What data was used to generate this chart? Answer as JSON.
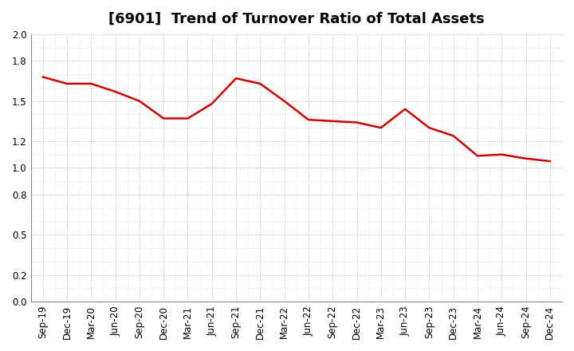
{
  "title": "[6901]  Trend of Turnover Ratio of Total Assets",
  "x_labels": [
    "Sep-19",
    "Dec-19",
    "Mar-20",
    "Jun-20",
    "Sep-20",
    "Dec-20",
    "Mar-21",
    "Jun-21",
    "Sep-21",
    "Dec-21",
    "Mar-22",
    "Jun-22",
    "Sep-22",
    "Dec-22",
    "Mar-23",
    "Jun-23",
    "Sep-23",
    "Dec-23",
    "Mar-24",
    "Jun-24",
    "Sep-24",
    "Dec-24"
  ],
  "values": [
    1.68,
    1.63,
    1.63,
    1.57,
    1.5,
    1.37,
    1.37,
    1.48,
    1.67,
    1.63,
    1.5,
    1.36,
    1.35,
    1.34,
    1.3,
    1.44,
    1.3,
    1.24,
    1.09,
    1.1,
    1.07,
    1.05
  ],
  "line_color": "#cc0000",
  "line_width": 1.8,
  "ylim": [
    0.0,
    2.0
  ],
  "yticks": [
    0.0,
    0.2,
    0.5,
    0.8,
    1.0,
    1.2,
    1.5,
    1.8,
    2.0
  ],
  "bg_color": "#ffffff",
  "plot_bg_color": "#ffffff",
  "grid_color": "#aaaaaa",
  "title_fontsize": 13,
  "tick_fontsize": 8.5
}
